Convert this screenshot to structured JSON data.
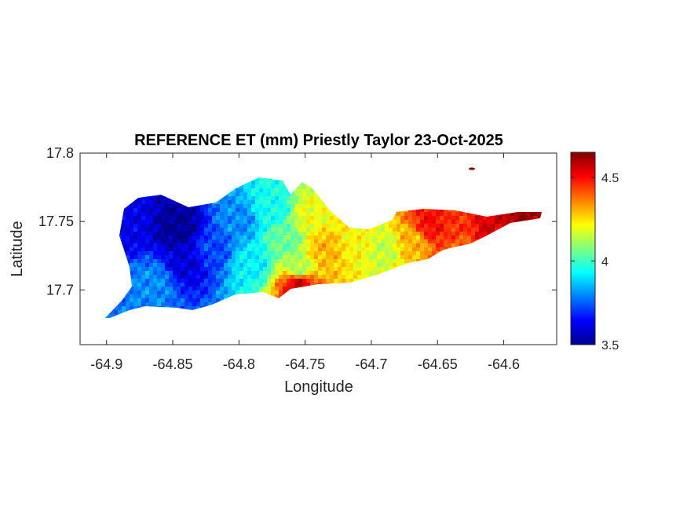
{
  "chart_data": {
    "type": "heatmap",
    "title": "REFERENCE ET (mm) Priestly Taylor 23-Oct-2025",
    "xlabel": "Longitude",
    "ylabel": "Latitude",
    "xlim": [
      -64.92,
      -64.56
    ],
    "ylim": [
      17.66,
      17.8
    ],
    "x_ticks": [
      -64.9,
      -64.85,
      -64.8,
      -64.75,
      -64.7,
      -64.65,
      -64.6
    ],
    "x_tick_labels": [
      "-64.9",
      "-64.85",
      "-64.8",
      "-64.75",
      "-64.7",
      "-64.65",
      "-64.6"
    ],
    "y_ticks": [
      17.7,
      17.75,
      17.8
    ],
    "y_tick_labels": [
      "17.7",
      "17.75",
      "17.8"
    ],
    "colorbar": {
      "colormap": "jet",
      "range": [
        3.5,
        4.65
      ],
      "ticks": [
        3.5,
        4,
        4.5
      ],
      "tick_labels": [
        "3.5",
        "4",
        "4.5"
      ],
      "location": "right"
    },
    "field_samples": [
      {
        "lon": -64.885,
        "lat": 17.745,
        "value": 3.62
      },
      {
        "lon": -64.845,
        "lat": 17.745,
        "value": 3.52
      },
      {
        "lon": -64.84,
        "lat": 17.72,
        "value": 3.6
      },
      {
        "lon": -64.865,
        "lat": 17.705,
        "value": 3.8
      },
      {
        "lon": -64.82,
        "lat": 17.73,
        "value": 3.72
      },
      {
        "lon": -64.8,
        "lat": 17.75,
        "value": 3.8
      },
      {
        "lon": -64.79,
        "lat": 17.72,
        "value": 3.92
      },
      {
        "lon": -64.775,
        "lat": 17.76,
        "value": 3.95
      },
      {
        "lon": -64.765,
        "lat": 17.735,
        "value": 4.05
      },
      {
        "lon": -64.755,
        "lat": 17.715,
        "value": 4.12
      },
      {
        "lon": -64.745,
        "lat": 17.755,
        "value": 4.2
      },
      {
        "lon": -64.735,
        "lat": 17.73,
        "value": 4.3
      },
      {
        "lon": -64.755,
        "lat": 17.705,
        "value": 4.55
      },
      {
        "lon": -64.71,
        "lat": 17.735,
        "value": 4.22
      },
      {
        "lon": -64.69,
        "lat": 17.73,
        "value": 4.15
      },
      {
        "lon": -64.67,
        "lat": 17.735,
        "value": 4.3
      },
      {
        "lon": -64.655,
        "lat": 17.748,
        "value": 4.5
      },
      {
        "lon": -64.635,
        "lat": 17.748,
        "value": 4.45
      },
      {
        "lon": -64.63,
        "lat": 17.73,
        "value": 4.4
      },
      {
        "lon": -64.61,
        "lat": 17.745,
        "value": 4.55
      },
      {
        "lon": -64.585,
        "lat": 17.75,
        "value": 4.62
      }
    ],
    "grid": false
  }
}
